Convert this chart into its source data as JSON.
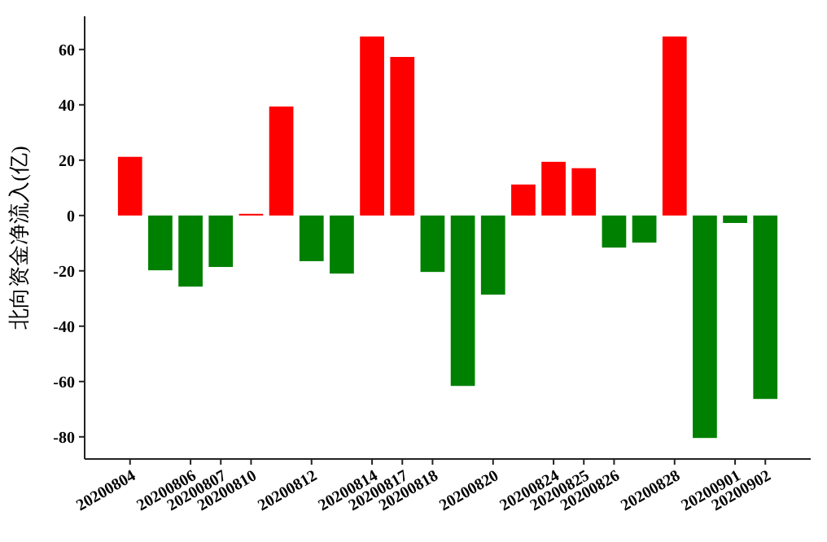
{
  "chart_data": {
    "type": "bar",
    "ylabel": "北向资金净流入(亿)",
    "categories": [
      "20200804",
      null,
      "20200806",
      "20200807",
      "20200810",
      null,
      "20200812",
      null,
      "20200814",
      "20200817",
      "20200818",
      null,
      "20200820",
      null,
      "20200824",
      "20200825",
      "20200826",
      null,
      "20200828",
      null,
      "20200901",
      "20200902"
    ],
    "values": [
      21.2,
      -19.8,
      -25.7,
      -18.6,
      0.6,
      39.4,
      -16.5,
      -21,
      64.7,
      57.3,
      -20.4,
      -61.6,
      -28.6,
      11.2,
      19.4,
      17.1,
      -11.6,
      -9.8,
      64.7,
      -80.4,
      -2.7,
      -66.3
    ],
    "colors": [
      "#ff0000",
      "#008000",
      "#008000",
      "#008000",
      "#ff0000",
      "#ff0000",
      "#008000",
      "#008000",
      "#ff0000",
      "#ff0000",
      "#008000",
      "#008000",
      "#008000",
      "#ff0000",
      "#ff0000",
      "#ff0000",
      "#008000",
      "#008000",
      "#ff0000",
      "#008000",
      "#008000",
      "#008000"
    ],
    "ylim": [
      -88,
      72
    ],
    "yticks": [
      -80,
      -60,
      -40,
      -20,
      0,
      20,
      40,
      60
    ]
  }
}
